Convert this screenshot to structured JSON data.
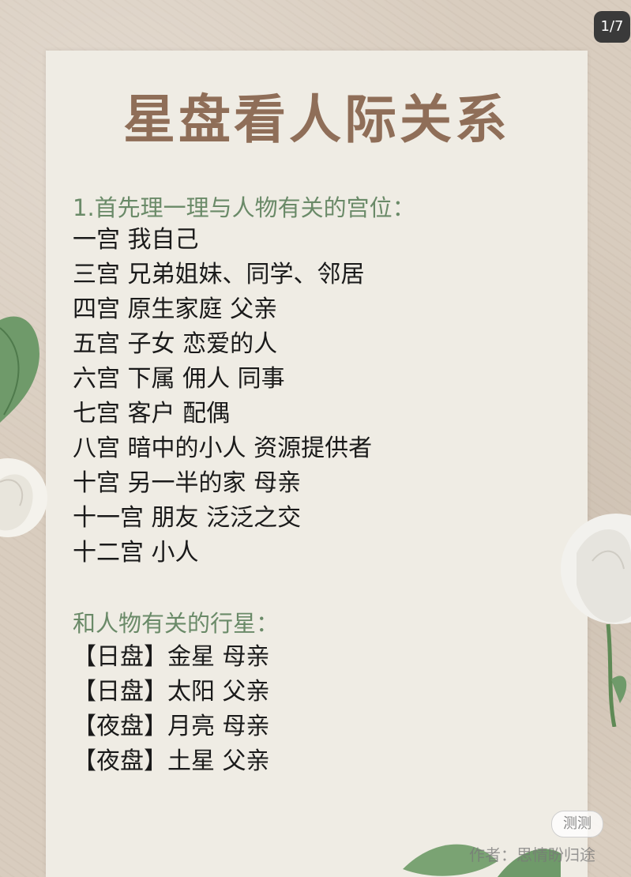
{
  "page_counter": "1/7",
  "title": "星盘看人际关系",
  "sections": [
    {
      "heading": "1.首先理一理与人物有关的宫位：",
      "items": [
        "一宫 我自己",
        "三宫 兄弟姐妹、同学、邻居",
        "四宫 原生家庭 父亲",
        "五宫 子女 恋爱的人",
        "六宫 下属 佣人 同事",
        "七宫 客户 配偶",
        "八宫 暗中的小人 资源提供者",
        "十宫 另一半的家 母亲",
        "十一宫 朋友 泛泛之交",
        "十二宫 小人"
      ]
    },
    {
      "heading": "和人物有关的行星：",
      "items": [
        "【日盘】金星 母亲",
        "【日盘】太阳 父亲",
        "【夜盘】月亮 母亲",
        "【夜盘】土星 父亲"
      ]
    }
  ],
  "ce_button_label": "测测",
  "watermark": "作者：思情盼归途",
  "colors": {
    "title": "#8f6e58",
    "heading": "#6a8a68",
    "paper": "#efece4"
  }
}
